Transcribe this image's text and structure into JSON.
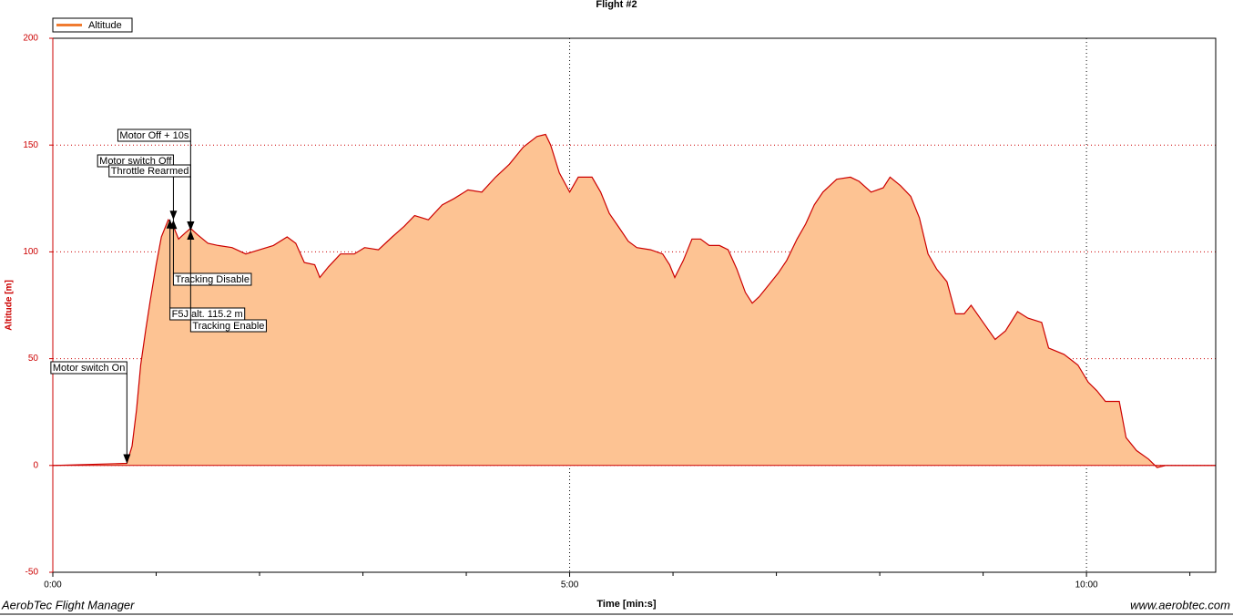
{
  "chart_data": {
    "type": "area",
    "title": "Flight #2",
    "xlabel": "Time [min:s]",
    "ylabel": "Altitude [m]",
    "footer_left": "AerobTec Flight Manager",
    "footer_right": "www.aerobtec.com",
    "xlim": [
      0,
      675
    ],
    "ylim": [
      -50,
      200
    ],
    "xticks": [
      {
        "value": 0,
        "label": "0:00"
      },
      {
        "value": 300,
        "label": "5:00"
      },
      {
        "value": 600,
        "label": "10:00"
      }
    ],
    "minor_xticks": [
      60,
      120,
      180,
      240,
      360,
      420,
      480,
      540,
      660
    ],
    "yticks": [
      -50,
      0,
      50,
      100,
      150,
      200
    ],
    "grid": true,
    "legend": "top-left",
    "series": [
      {
        "name": "Altitude",
        "color": "#cc0000",
        "fill_color": "#fdc393",
        "legend_color": "#f07b30",
        "x": [
          0,
          43,
          46,
          48.6,
          51,
          54,
          56.5,
          60,
          63,
          67,
          70,
          73,
          77,
          80,
          84,
          90,
          96,
          104,
          112,
          120,
          128,
          136,
          141,
          146,
          152,
          155,
          160,
          167,
          175,
          181,
          189,
          197,
          204,
          210,
          218,
          226,
          233,
          241,
          249,
          257,
          265,
          273,
          281,
          286,
          289,
          294,
          300,
          305,
          313,
          318,
          323,
          329,
          334,
          339,
          347,
          354,
          358,
          361,
          366,
          371,
          376,
          381,
          387,
          392,
          397,
          402,
          406,
          410,
          416,
          421,
          426,
          432,
          437,
          442,
          447,
          455,
          463,
          468,
          475,
          482,
          486,
          492,
          498,
          503,
          508,
          513,
          519,
          524,
          529,
          533,
          540,
          547,
          553,
          560,
          566,
          574,
          578,
          587,
          595,
          601,
          606,
          611,
          619,
          623,
          629,
          636,
          641,
          646,
          667,
          675
        ],
        "values": [
          0,
          1,
          9,
          26,
          47,
          64,
          77,
          94,
          107,
          115,
          112,
          106,
          109,
          111,
          108,
          104,
          103,
          102,
          99,
          101,
          103,
          107,
          104,
          95,
          94,
          88,
          93,
          99,
          99,
          102,
          101,
          107,
          112,
          117,
          115,
          122,
          125,
          129,
          128,
          135,
          141,
          149,
          154,
          155,
          150,
          137,
          128,
          135,
          135,
          128,
          118,
          111,
          105,
          102,
          101,
          99,
          94,
          88,
          96,
          106,
          106,
          103,
          103,
          101,
          92,
          81,
          76,
          79,
          85,
          90,
          96,
          106,
          113,
          122,
          128,
          134,
          135,
          133,
          128,
          130,
          135,
          131,
          126,
          116,
          99,
          92,
          86,
          71,
          71,
          75,
          67,
          59,
          63,
          72,
          69,
          67,
          55,
          52,
          47,
          39,
          35,
          30,
          30,
          13,
          7,
          3,
          -1,
          0,
          0,
          0
        ]
      }
    ],
    "annotations": [
      {
        "text": "Motor switch On",
        "x": 43,
        "y": 1
      },
      {
        "text": "Motor switch Off",
        "x": 70,
        "y": 115
      },
      {
        "text": "Throttle Rearmed",
        "x": 80,
        "y": 110
      },
      {
        "text": "Motor Off + 10s",
        "x": 80,
        "y": 110
      },
      {
        "text": "Tracking Disable",
        "x": 70,
        "y": 115
      },
      {
        "text": "F5J alt. 115.2 m",
        "x": 68,
        "y": 115.2
      },
      {
        "text": "Tracking Enable",
        "x": 80,
        "y": 110
      }
    ]
  }
}
